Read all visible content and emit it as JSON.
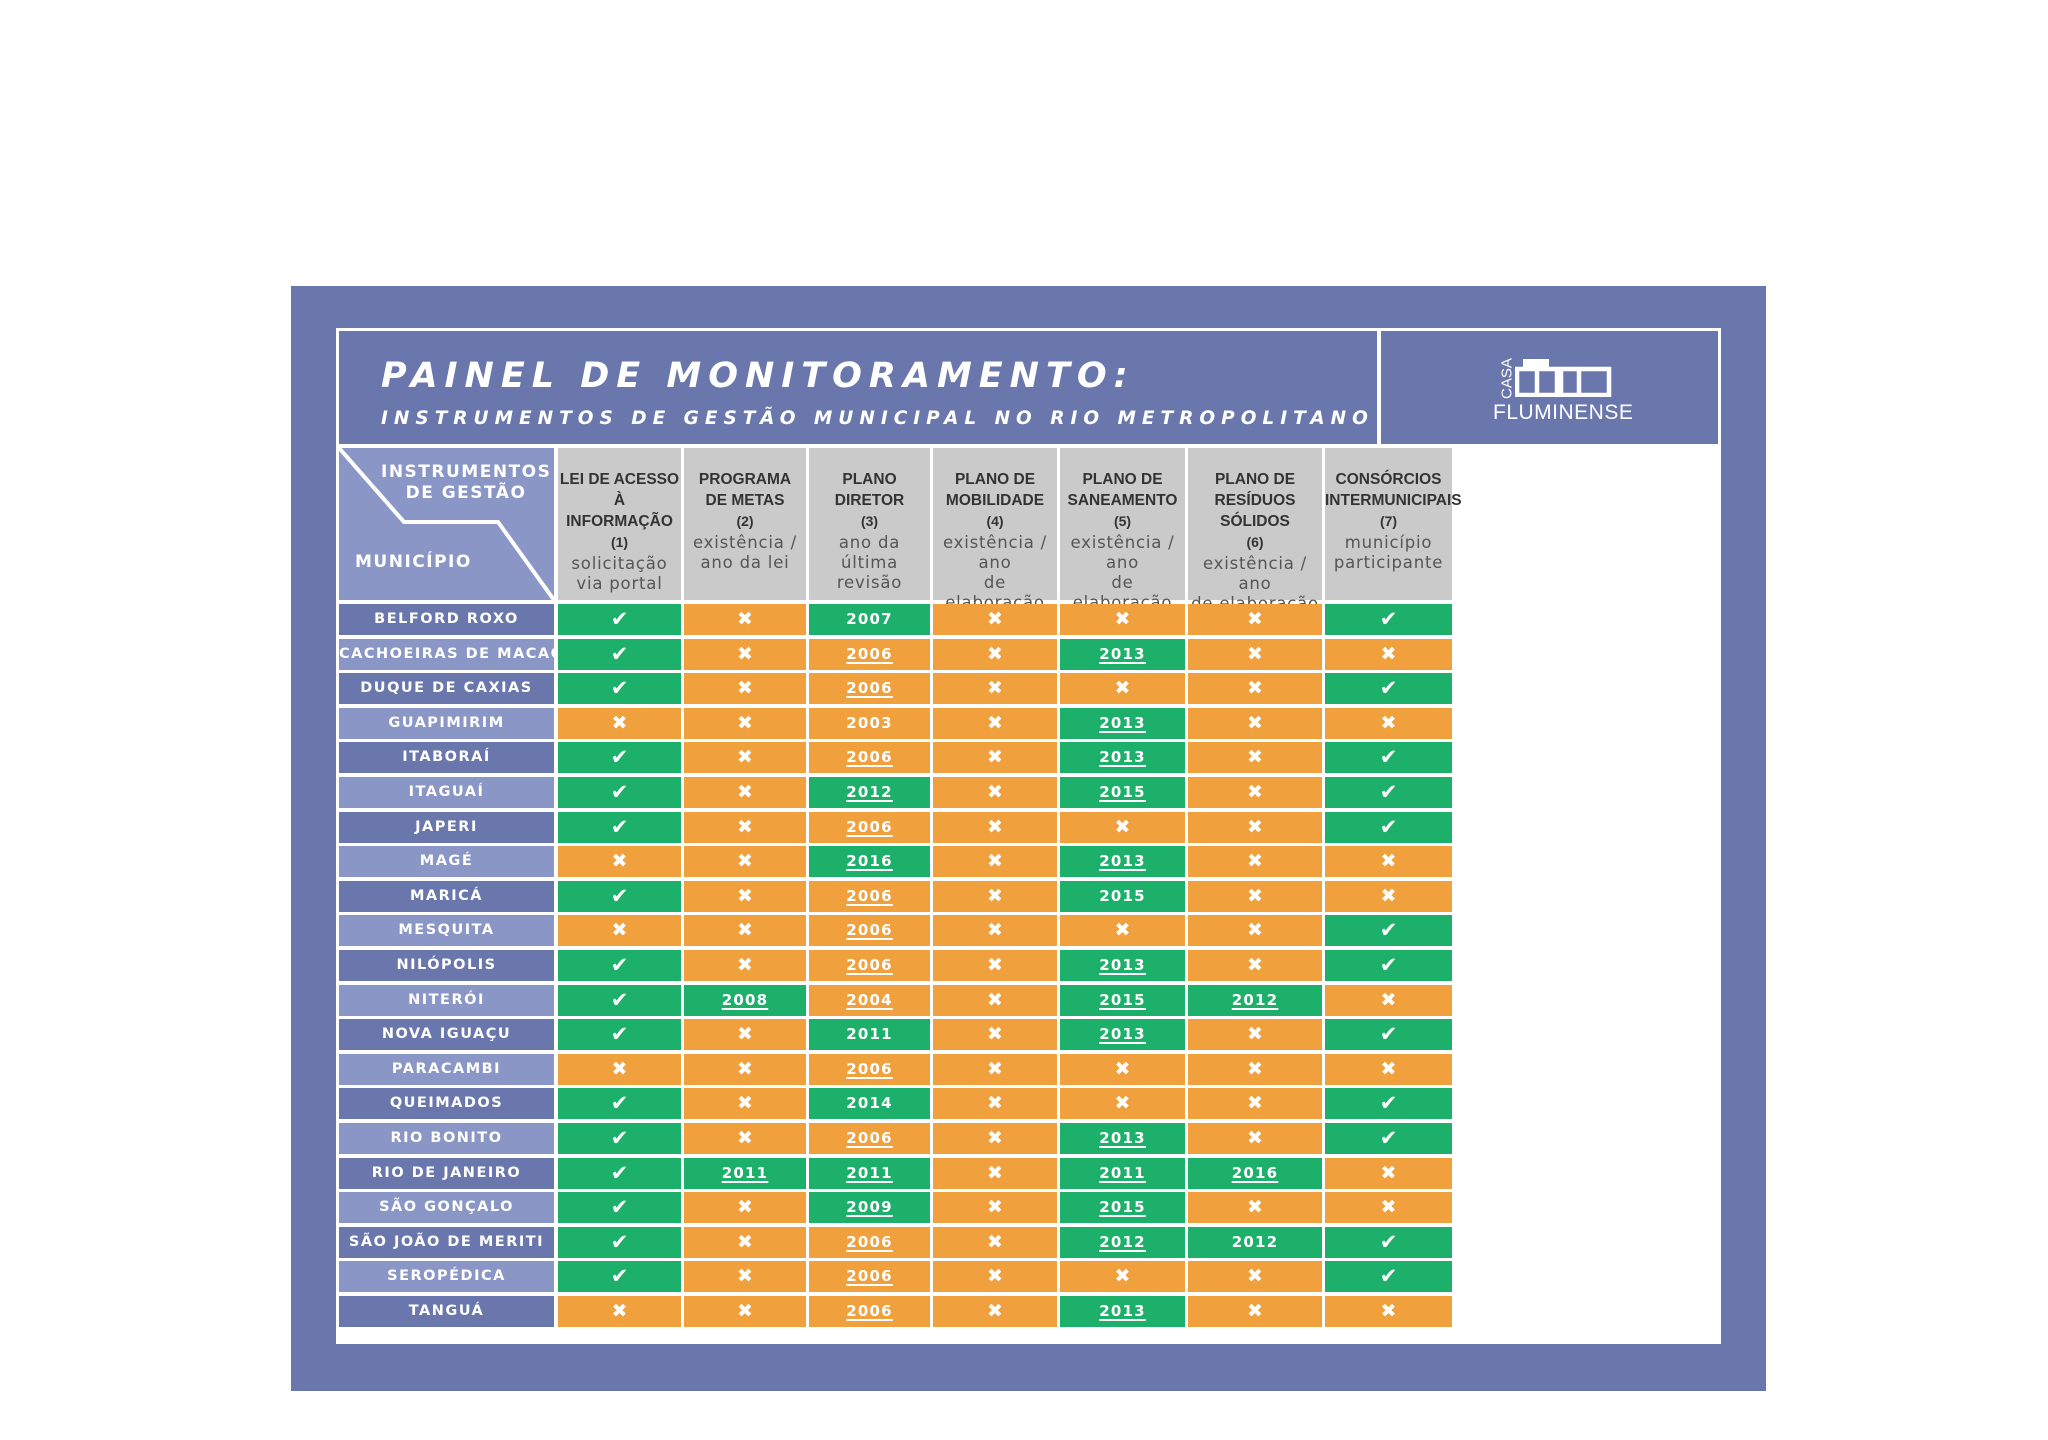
{
  "header": {
    "title": "PAINEL DE MONITORAMENTO:",
    "subtitle": "INSTRUMENTOS DE GESTÃO MUNICIPAL NO RIO METROPOLITANO"
  },
  "logo": {
    "casa": "CASA",
    "name": "FLUMINENSE",
    "icon": "house-outline-icon"
  },
  "corner": {
    "top_label": "INSTRUMENTOS\nDE GESTÃO",
    "bottom_label": "MUNICÍPIO"
  },
  "columns": [
    {
      "title": "LEI DE ACESSO À\nINFORMAÇÃO",
      "num": "(1)",
      "desc": "solicitação\nvia portal"
    },
    {
      "title": "PROGRAMA\nDE METAS",
      "num": "(2)",
      "desc": "existência /\nano da lei"
    },
    {
      "title": "PLANO\nDIRETOR",
      "num": "(3)",
      "desc": "ano da última\nrevisão"
    },
    {
      "title": "PLANO DE\nMOBILIDADE",
      "num": "(4)",
      "desc": "existência / ano\nde elaboração"
    },
    {
      "title": "PLANO DE\nSANEAMENTO",
      "num": "(5)",
      "desc": "existência / ano\nde elaboração"
    },
    {
      "title": "PLANO DE\nRESÍDUOS SÓLIDOS",
      "num": "(6)",
      "desc": "existência / ano\nde elaboração"
    },
    {
      "title": "CONSÓRCIOS\nINTERMUNICIPAIS",
      "num": "(7)",
      "desc": "município\nparticipante"
    }
  ],
  "symbols": {
    "yes": "✔",
    "no": "✖"
  },
  "colors": {
    "panel": "#6a77ad",
    "row_dark": "#6a77ad",
    "row_light": "#8a96c6",
    "yes": "#1db06a",
    "no": "#f0a03c",
    "header_bg": "#cacaca"
  },
  "rows": [
    {
      "name": "BELFORD ROXO",
      "cells": [
        "Y",
        "N",
        "2007|g",
        "N",
        "N",
        "N",
        "Y"
      ]
    },
    {
      "name": "CACHOEIRAS DE MACACU",
      "cells": [
        "Y",
        "N",
        "2006|o|u",
        "N",
        "2013|g|u",
        "N",
        "N"
      ]
    },
    {
      "name": "DUQUE DE CAXIAS",
      "cells": [
        "Y",
        "N",
        "2006|o|u",
        "N",
        "N",
        "N",
        "Y"
      ]
    },
    {
      "name": "GUAPIMIRIM",
      "cells": [
        "N",
        "N",
        "2003|o",
        "N",
        "2013|g|u",
        "N",
        "N"
      ]
    },
    {
      "name": "ITABORAÍ",
      "cells": [
        "Y",
        "N",
        "2006|o|u",
        "N",
        "2013|g|u",
        "N",
        "Y"
      ]
    },
    {
      "name": "ITAGUAÍ",
      "cells": [
        "Y",
        "N",
        "2012|g|u",
        "N",
        "2015|g|u",
        "N",
        "Y"
      ]
    },
    {
      "name": "JAPERI",
      "cells": [
        "Y",
        "N",
        "2006|o|u",
        "N",
        "N",
        "N",
        "Y"
      ]
    },
    {
      "name": "MAGÉ",
      "cells": [
        "N",
        "N",
        "2016|g|u",
        "N",
        "2013|g|u",
        "N",
        "N"
      ]
    },
    {
      "name": "MARICÁ",
      "cells": [
        "Y",
        "N",
        "2006|o|u",
        "N",
        "2015|g",
        "N",
        "N"
      ]
    },
    {
      "name": "MESQUITA",
      "cells": [
        "N",
        "N",
        "2006|o|u",
        "N",
        "N",
        "N",
        "Y"
      ]
    },
    {
      "name": "NILÓPOLIS",
      "cells": [
        "Y",
        "N",
        "2006|o|u",
        "N",
        "2013|g|u",
        "N",
        "Y"
      ]
    },
    {
      "name": "NITERÓI",
      "cells": [
        "Y",
        "2008|g|u",
        "2004|o|u",
        "N",
        "2015|g|u",
        "2012|g|u",
        "N"
      ]
    },
    {
      "name": "NOVA IGUAÇU",
      "cells": [
        "Y",
        "N",
        "2011|g",
        "N",
        "2013|g|u",
        "N",
        "Y"
      ]
    },
    {
      "name": "PARACAMBI",
      "cells": [
        "N",
        "N",
        "2006|o|u",
        "N",
        "N",
        "N",
        "N"
      ]
    },
    {
      "name": "QUEIMADOS",
      "cells": [
        "Y",
        "N",
        "2014|g",
        "N",
        "N",
        "N",
        "Y"
      ]
    },
    {
      "name": "RIO BONITO",
      "cells": [
        "Y",
        "N",
        "2006|o|u",
        "N",
        "2013|g|u",
        "N",
        "Y"
      ]
    },
    {
      "name": "RIO DE JANEIRO",
      "cells": [
        "Y",
        "2011|g|u",
        "2011|g|u",
        "N",
        "2011|g|u",
        "2016|g|u",
        "N"
      ]
    },
    {
      "name": "SÃO GONÇALO",
      "cells": [
        "Y",
        "N",
        "2009|g|u",
        "N",
        "2015|g|u",
        "N",
        "N"
      ]
    },
    {
      "name": "SÃO JOÃO DE MERITI",
      "cells": [
        "Y",
        "N",
        "2006|o|u",
        "N",
        "2012|g|u",
        "2012|g",
        "Y"
      ]
    },
    {
      "name": "SEROPÉDICA",
      "cells": [
        "Y",
        "N",
        "2006|o|u",
        "N",
        "N",
        "N",
        "Y"
      ]
    },
    {
      "name": "TANGUÁ",
      "cells": [
        "N",
        "N",
        "2006|o|u",
        "N",
        "2013|g|u",
        "N",
        "N"
      ]
    }
  ]
}
